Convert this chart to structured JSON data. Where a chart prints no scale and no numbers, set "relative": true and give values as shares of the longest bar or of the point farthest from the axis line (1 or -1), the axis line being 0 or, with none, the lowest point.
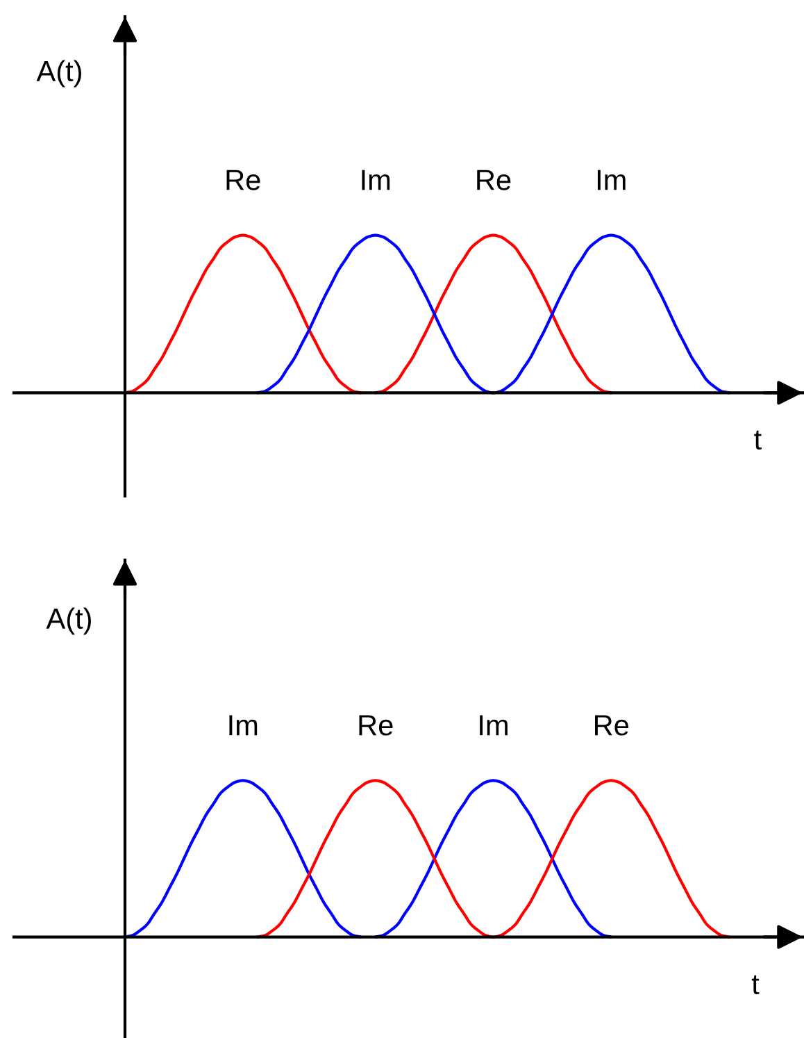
{
  "chart_data": [
    {
      "type": "line",
      "relative": true,
      "xlabel": "t",
      "ylabel": "A(t)",
      "categories": [
        null,
        null,
        null,
        null,
        null,
        null,
        null,
        null,
        null,
        null,
        null,
        null,
        null,
        null,
        null,
        null,
        null,
        null,
        null,
        null,
        null,
        null,
        null,
        null,
        null,
        null,
        null,
        null,
        null,
        null,
        null,
        null,
        null,
        null,
        null,
        null,
        null,
        null,
        null,
        null,
        null,
        null,
        null,
        null,
        null,
        null,
        null,
        null,
        null,
        null,
        null,
        null,
        null,
        null,
        null,
        null,
        null,
        null,
        null,
        null,
        null,
        null,
        null,
        null,
        null,
        null,
        null,
        null,
        null,
        null,
        null,
        null,
        null,
        null,
        null,
        null,
        null,
        null,
        null,
        null,
        null,
        null,
        null
      ],
      "series": [
        {
          "name": "Re",
          "color": "#ff0000",
          "values": [
            0,
            0.01,
            0.04,
            0.08,
            0.15,
            0.22,
            0.31,
            0.4,
            0.5,
            0.6,
            0.69,
            0.78,
            0.85,
            0.92,
            0.96,
            0.99,
            1,
            0.99,
            0.96,
            0.92,
            0.85,
            0.78,
            0.69,
            0.6,
            0.5,
            0.4,
            0.31,
            0.22,
            0.15,
            0.08,
            0.04,
            0.01,
            0,
            null,
            0,
            0.01,
            0.04,
            0.08,
            0.15,
            0.22,
            0.31,
            0.4,
            0.5,
            0.6,
            0.69,
            0.78,
            0.85,
            0.92,
            0.96,
            0.99,
            1,
            0.99,
            0.96,
            0.92,
            0.85,
            0.78,
            0.69,
            0.6,
            0.5,
            0.4,
            0.31,
            0.22,
            0.15,
            0.08,
            0.04,
            0.01,
            0,
            null,
            null,
            null,
            null,
            null,
            null,
            null,
            null,
            null,
            null,
            null,
            null,
            null,
            null,
            null,
            null
          ]
        },
        {
          "name": "Im",
          "color": "#0000ff",
          "values": [
            null,
            null,
            null,
            null,
            null,
            null,
            null,
            null,
            null,
            null,
            null,
            null,
            null,
            null,
            null,
            null,
            null,
            null,
            0,
            0.01,
            0.04,
            0.08,
            0.15,
            0.22,
            0.31,
            0.4,
            0.5,
            0.6,
            0.69,
            0.78,
            0.85,
            0.92,
            0.96,
            0.99,
            1,
            0.99,
            0.96,
            0.92,
            0.85,
            0.78,
            0.69,
            0.6,
            0.5,
            0.4,
            0.31,
            0.22,
            0.15,
            0.08,
            0.04,
            0.01,
            0,
            0.01,
            0.04,
            0.08,
            0.15,
            0.22,
            0.31,
            0.4,
            0.5,
            0.6,
            0.69,
            0.78,
            0.85,
            0.92,
            0.96,
            0.99,
            1,
            0.99,
            0.96,
            0.92,
            0.85,
            0.78,
            0.69,
            0.6,
            0.5,
            0.4,
            0.31,
            0.22,
            0.15,
            0.08,
            0.04,
            0.01,
            0
          ]
        }
      ]
    },
    {
      "type": "line",
      "relative": true,
      "xlabel": "t",
      "ylabel": "A(t)",
      "categories": [
        null,
        null,
        null,
        null,
        null,
        null,
        null,
        null,
        null,
        null,
        null,
        null,
        null,
        null,
        null,
        null,
        null,
        null,
        null,
        null,
        null,
        null,
        null,
        null,
        null,
        null,
        null,
        null,
        null,
        null,
        null,
        null,
        null,
        null,
        null,
        null,
        null,
        null,
        null,
        null,
        null,
        null,
        null,
        null,
        null,
        null,
        null,
        null,
        null,
        null,
        null,
        null,
        null,
        null,
        null,
        null,
        null,
        null,
        null,
        null,
        null,
        null,
        null,
        null,
        null,
        null,
        null,
        null,
        null,
        null,
        null,
        null,
        null,
        null,
        null,
        null,
        null,
        null,
        null,
        null,
        null,
        null,
        null
      ],
      "series": [
        {
          "name": "Im",
          "color": "#0000ff",
          "values": [
            0,
            0.01,
            0.04,
            0.08,
            0.15,
            0.22,
            0.31,
            0.4,
            0.5,
            0.6,
            0.69,
            0.78,
            0.85,
            0.92,
            0.96,
            0.99,
            1,
            0.99,
            0.96,
            0.92,
            0.85,
            0.78,
            0.69,
            0.6,
            0.5,
            0.4,
            0.31,
            0.22,
            0.15,
            0.08,
            0.04,
            0.01,
            0,
            null,
            0,
            0.01,
            0.04,
            0.08,
            0.15,
            0.22,
            0.31,
            0.4,
            0.5,
            0.6,
            0.69,
            0.78,
            0.85,
            0.92,
            0.96,
            0.99,
            1,
            0.99,
            0.96,
            0.92,
            0.85,
            0.78,
            0.69,
            0.6,
            0.5,
            0.4,
            0.31,
            0.22,
            0.15,
            0.08,
            0.04,
            0.01,
            0,
            null,
            null,
            null,
            null,
            null,
            null,
            null,
            null,
            null,
            null,
            null,
            null,
            null,
            null,
            null,
            null
          ]
        },
        {
          "name": "Re",
          "color": "#ff0000",
          "values": [
            null,
            null,
            null,
            null,
            null,
            null,
            null,
            null,
            null,
            null,
            null,
            null,
            null,
            null,
            null,
            null,
            null,
            null,
            0,
            0.01,
            0.04,
            0.08,
            0.15,
            0.22,
            0.31,
            0.4,
            0.5,
            0.6,
            0.69,
            0.78,
            0.85,
            0.92,
            0.96,
            0.99,
            1,
            0.99,
            0.96,
            0.92,
            0.85,
            0.78,
            0.69,
            0.6,
            0.5,
            0.4,
            0.31,
            0.22,
            0.15,
            0.08,
            0.04,
            0.01,
            0,
            0.01,
            0.04,
            0.08,
            0.15,
            0.22,
            0.31,
            0.4,
            0.5,
            0.6,
            0.69,
            0.78,
            0.85,
            0.92,
            0.96,
            0.99,
            1,
            0.99,
            0.96,
            0.92,
            0.85,
            0.78,
            0.69,
            0.6,
            0.5,
            0.4,
            0.31,
            0.22,
            0.15,
            0.08,
            0.04,
            0.01,
            0
          ]
        }
      ]
    }
  ]
}
